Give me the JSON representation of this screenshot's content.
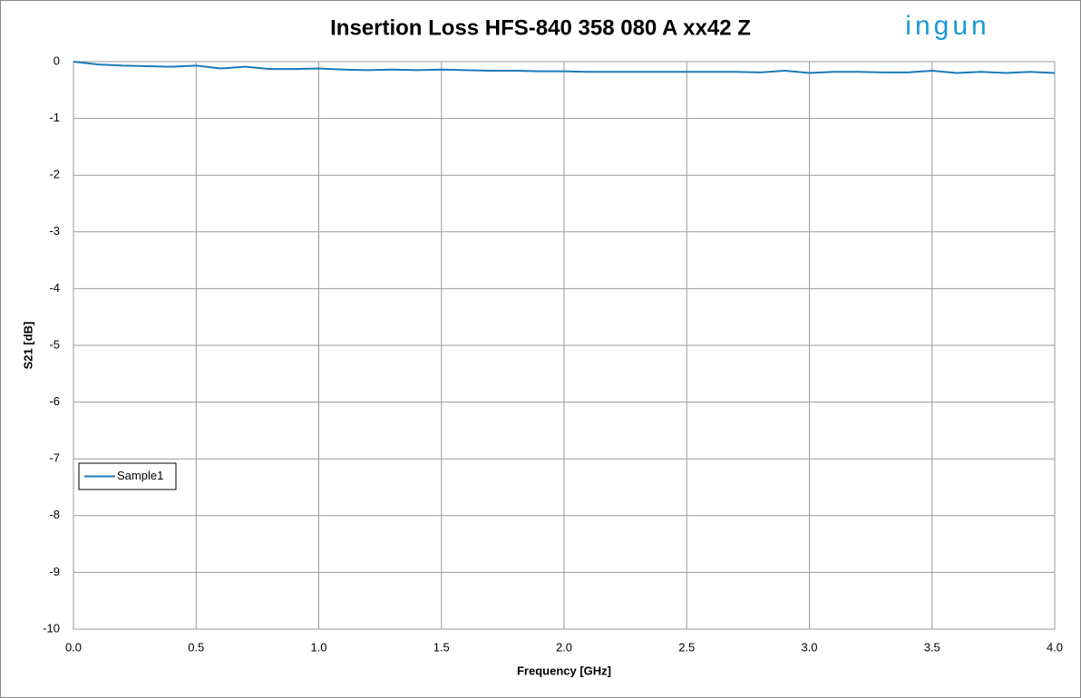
{
  "chart_data": {
    "type": "line",
    "title": "Insertion Loss HFS-840 358 080 A xx42 Z",
    "logo": "ingun",
    "x_label": "Frequency [GHz]",
    "y_label": "S21 [dB]",
    "x": [
      0.0,
      0.1,
      0.2,
      0.3,
      0.4,
      0.5,
      0.6,
      0.7,
      0.8,
      0.9,
      1.0,
      1.1,
      1.2,
      1.3,
      1.4,
      1.5,
      1.6,
      1.7,
      1.8,
      1.9,
      2.0,
      2.1,
      2.2,
      2.3,
      2.4,
      2.5,
      2.6,
      2.7,
      2.8,
      2.9,
      3.0,
      3.1,
      3.2,
      3.3,
      3.4,
      3.5,
      3.6,
      3.7,
      3.8,
      3.9,
      4.0
    ],
    "series": [
      {
        "name": "Sample1",
        "color": "#1b7ab8",
        "values": [
          0,
          -0.05,
          -0.07,
          -0.08,
          -0.09,
          -0.07,
          -0.12,
          -0.09,
          -0.13,
          -0.13,
          -0.12,
          -0.14,
          -0.15,
          -0.14,
          -0.15,
          -0.14,
          -0.15,
          -0.16,
          -0.16,
          -0.17,
          -0.17,
          -0.18,
          -0.18,
          -0.18,
          -0.18,
          -0.18,
          -0.18,
          -0.18,
          -0.19,
          -0.16,
          -0.2,
          -0.18,
          -0.18,
          -0.19,
          -0.19,
          -0.16,
          -0.2,
          -0.18,
          -0.2,
          -0.18,
          -0.2
        ]
      }
    ],
    "xlim": [
      0,
      4
    ],
    "ylim": [
      -10,
      0
    ],
    "xticks": [
      {
        "value": 0,
        "label": "0.0"
      },
      {
        "value": 0.5,
        "label": "0.5"
      },
      {
        "value": 1,
        "label": "1.0"
      },
      {
        "value": 1.5,
        "label": "1.5"
      },
      {
        "value": 2,
        "label": "2.0"
      },
      {
        "value": 2.5,
        "label": "2.5"
      },
      {
        "value": 3,
        "label": "3.0"
      },
      {
        "value": 3.5,
        "label": "3.5"
      },
      {
        "value": 4,
        "label": "4.0"
      }
    ],
    "yticks": [
      0,
      -1,
      -2,
      -3,
      -4,
      -5,
      -6,
      -7,
      -8,
      -9,
      -10
    ],
    "grid": true,
    "legend": "lower left"
  }
}
